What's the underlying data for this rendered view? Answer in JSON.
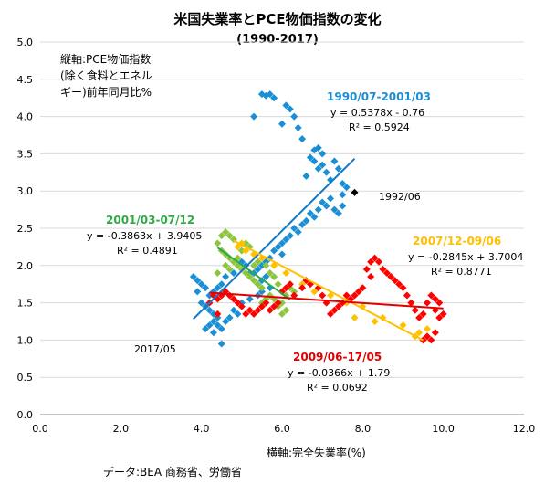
{
  "chart_data": {
    "type": "scatter",
    "title": "米国失業率とPCE物価指数の変化",
    "subtitle": "(1990-2017)",
    "xlabel": "横軸:完全失業率(%)",
    "ylabel_lines": [
      "縦軸:PCE物価指数",
      "(除く食料とエネル",
      "ギー)前年同月比%"
    ],
    "source": "データ:BEA 商務省、労働省",
    "xlim": [
      0,
      12
    ],
    "ylim": [
      0,
      5
    ],
    "x_ticks": [
      "0.0",
      "2.0",
      "4.0",
      "6.0",
      "8.0",
      "10.0",
      "12.0"
    ],
    "y_ticks": [
      "0.0",
      "0.5",
      "1.0",
      "1.5",
      "2.0",
      "2.5",
      "3.0",
      "3.5",
      "4.0",
      "4.5",
      "5.0"
    ],
    "grid": "horizontal",
    "series": [
      {
        "name": "1990/07-2001/03",
        "color": "#1a8fd6",
        "equation": "y = 0.5378x - 0.76",
        "r2": "R² = 0.5924",
        "trend": {
          "slope": 0.5378,
          "intercept": -0.76,
          "x_range": [
            3.8,
            7.8
          ]
        },
        "points": [
          [
            5.5,
            4.3
          ],
          [
            5.6,
            4.28
          ],
          [
            5.7,
            4.3
          ],
          [
            5.8,
            4.25
          ],
          [
            5.3,
            4.0
          ],
          [
            6.1,
            4.15
          ],
          [
            6.2,
            4.1
          ],
          [
            6.3,
            4.0
          ],
          [
            6.0,
            3.9
          ],
          [
            6.4,
            3.85
          ],
          [
            6.5,
            3.7
          ],
          [
            6.8,
            3.55
          ],
          [
            6.9,
            3.58
          ],
          [
            7.0,
            3.5
          ],
          [
            6.7,
            3.45
          ],
          [
            6.8,
            3.4
          ],
          [
            6.9,
            3.3
          ],
          [
            7.0,
            3.35
          ],
          [
            7.1,
            3.25
          ],
          [
            6.6,
            3.2
          ],
          [
            7.3,
            3.4
          ],
          [
            7.4,
            3.3
          ],
          [
            7.2,
            3.15
          ],
          [
            7.5,
            3.1
          ],
          [
            7.6,
            3.05
          ],
          [
            7.5,
            2.95
          ],
          [
            7.2,
            2.9
          ],
          [
            7.0,
            2.85
          ],
          [
            7.1,
            2.8
          ],
          [
            6.9,
            2.75
          ],
          [
            6.7,
            2.7
          ],
          [
            6.8,
            2.65
          ],
          [
            7.3,
            2.75
          ],
          [
            7.4,
            2.7
          ],
          [
            7.5,
            2.8
          ],
          [
            6.6,
            2.6
          ],
          [
            6.5,
            2.55
          ],
          [
            6.3,
            2.5
          ],
          [
            6.4,
            2.45
          ],
          [
            6.2,
            2.4
          ],
          [
            6.1,
            2.35
          ],
          [
            6.0,
            2.3
          ],
          [
            5.9,
            2.25
          ],
          [
            5.8,
            2.2
          ],
          [
            6.0,
            2.15
          ],
          [
            5.7,
            2.1
          ],
          [
            5.6,
            2.05
          ],
          [
            5.5,
            2.0
          ],
          [
            5.4,
            1.95
          ],
          [
            5.3,
            1.9
          ],
          [
            5.6,
            1.85
          ],
          [
            5.5,
            1.8
          ],
          [
            5.4,
            1.75
          ],
          [
            5.2,
            1.9
          ],
          [
            5.1,
            2.0
          ],
          [
            5.0,
            2.05
          ],
          [
            4.8,
            1.9
          ],
          [
            4.6,
            1.85
          ],
          [
            4.5,
            1.75
          ],
          [
            4.4,
            1.7
          ],
          [
            4.3,
            1.65
          ],
          [
            4.2,
            1.6
          ],
          [
            4.1,
            1.7
          ],
          [
            4.0,
            1.75
          ],
          [
            3.9,
            1.8
          ],
          [
            3.8,
            1.85
          ],
          [
            3.9,
            1.65
          ],
          [
            4.0,
            1.5
          ],
          [
            4.1,
            1.45
          ],
          [
            4.2,
            1.4
          ],
          [
            4.3,
            1.35
          ],
          [
            4.4,
            1.3
          ],
          [
            4.3,
            1.25
          ],
          [
            4.2,
            1.2
          ],
          [
            4.1,
            1.15
          ],
          [
            4.3,
            1.1
          ],
          [
            4.4,
            1.2
          ],
          [
            4.6,
            1.25
          ],
          [
            4.5,
            1.15
          ],
          [
            4.7,
            1.3
          ],
          [
            4.8,
            1.4
          ],
          [
            4.9,
            1.35
          ],
          [
            4.5,
            0.95
          ],
          [
            5.0,
            1.5
          ],
          [
            5.2,
            1.55
          ],
          [
            5.4,
            1.6
          ],
          [
            5.5,
            1.65
          ],
          [
            5.7,
            1.7
          ]
        ]
      },
      {
        "name": "2001/03-07/12",
        "color": "#8cc63f",
        "equation": "y = -0.3863x + 3.9405",
        "r2": "R² = 0.4891",
        "trend": {
          "slope": -0.3863,
          "intercept": 3.9405,
          "x_range": [
            4.4,
            6.2
          ]
        },
        "points": [
          [
            4.4,
            2.3
          ],
          [
            4.5,
            2.4
          ],
          [
            4.6,
            2.45
          ],
          [
            4.7,
            2.4
          ],
          [
            4.8,
            2.35
          ],
          [
            4.5,
            2.2
          ],
          [
            4.6,
            2.15
          ],
          [
            4.7,
            2.1
          ],
          [
            4.8,
            2.05
          ],
          [
            4.9,
            2.1
          ],
          [
            5.0,
            2.2
          ],
          [
            5.1,
            2.3
          ],
          [
            5.2,
            2.25
          ],
          [
            4.9,
            2.0
          ],
          [
            5.0,
            1.95
          ],
          [
            5.1,
            1.9
          ],
          [
            5.2,
            1.85
          ],
          [
            5.3,
            1.8
          ],
          [
            5.4,
            1.75
          ],
          [
            5.5,
            1.7
          ],
          [
            5.3,
            2.0
          ],
          [
            5.4,
            2.05
          ],
          [
            5.5,
            2.1
          ],
          [
            5.6,
            2.0
          ],
          [
            5.7,
            1.9
          ],
          [
            5.8,
            1.85
          ],
          [
            5.9,
            1.75
          ],
          [
            6.0,
            1.65
          ],
          [
            6.1,
            1.6
          ],
          [
            6.0,
            1.5
          ],
          [
            5.9,
            1.45
          ],
          [
            6.1,
            1.4
          ],
          [
            6.0,
            1.35
          ],
          [
            5.8,
            1.55
          ],
          [
            5.7,
            1.6
          ],
          [
            5.6,
            1.55
          ],
          [
            4.6,
            2.0
          ],
          [
            4.7,
            1.95
          ],
          [
            4.4,
            1.9
          ],
          [
            5.5,
            1.5
          ],
          [
            6.2,
            1.7
          ],
          [
            6.3,
            1.65
          ]
        ]
      },
      {
        "name": "2007/12-09/06",
        "color": "#ffc000",
        "equation": "y = -0.2845x + 3.7004",
        "r2": "R² = 0.8771",
        "trend": {
          "slope": -0.2845,
          "intercept": 3.7004,
          "x_range": [
            4.8,
            9.5
          ]
        },
        "points": [
          [
            4.9,
            2.25
          ],
          [
            5.0,
            2.3
          ],
          [
            5.1,
            2.2
          ],
          [
            5.3,
            2.15
          ],
          [
            5.5,
            2.1
          ],
          [
            5.8,
            2.0
          ],
          [
            6.1,
            1.9
          ],
          [
            6.5,
            1.75
          ],
          [
            6.8,
            1.65
          ],
          [
            7.2,
            1.6
          ],
          [
            7.6,
            1.5
          ],
          [
            8.0,
            1.45
          ],
          [
            8.5,
            1.3
          ],
          [
            9.0,
            1.2
          ],
          [
            9.4,
            1.1
          ],
          [
            9.5,
            1.0
          ],
          [
            9.6,
            1.15
          ],
          [
            9.3,
            1.05
          ],
          [
            8.3,
            1.25
          ],
          [
            7.8,
            1.3
          ]
        ]
      },
      {
        "name": "2009/06-17/05",
        "color": "#ff0000",
        "equation": "y = -0.0366x + 1.79",
        "r2": "R² = 0.0692",
        "trend": {
          "slope": -0.0366,
          "intercept": 1.79,
          "x_range": [
            4.2,
            10.0
          ]
        },
        "points": [
          [
            9.5,
            1.0
          ],
          [
            9.6,
            1.05
          ],
          [
            9.7,
            1.0
          ],
          [
            9.8,
            1.1
          ],
          [
            9.9,
            1.3
          ],
          [
            10.0,
            1.35
          ],
          [
            9.8,
            1.4
          ],
          [
            9.9,
            1.5
          ],
          [
            9.8,
            1.55
          ],
          [
            9.7,
            1.6
          ],
          [
            9.6,
            1.5
          ],
          [
            9.5,
            1.35
          ],
          [
            9.4,
            1.3
          ],
          [
            9.3,
            1.4
          ],
          [
            9.2,
            1.5
          ],
          [
            9.1,
            1.6
          ],
          [
            9.0,
            1.7
          ],
          [
            8.9,
            1.75
          ],
          [
            8.8,
            1.8
          ],
          [
            8.7,
            1.85
          ],
          [
            8.6,
            1.9
          ],
          [
            8.5,
            1.95
          ],
          [
            8.4,
            2.05
          ],
          [
            8.3,
            2.1
          ],
          [
            8.2,
            2.05
          ],
          [
            8.1,
            1.95
          ],
          [
            8.2,
            1.85
          ],
          [
            8.0,
            1.7
          ],
          [
            7.9,
            1.65
          ],
          [
            7.8,
            1.6
          ],
          [
            7.7,
            1.55
          ],
          [
            7.6,
            1.6
          ],
          [
            7.5,
            1.5
          ],
          [
            7.4,
            1.45
          ],
          [
            7.3,
            1.4
          ],
          [
            7.2,
            1.35
          ],
          [
            7.1,
            1.5
          ],
          [
            7.0,
            1.6
          ],
          [
            6.9,
            1.7
          ],
          [
            6.7,
            1.75
          ],
          [
            6.6,
            1.8
          ],
          [
            6.5,
            1.7
          ],
          [
            6.3,
            1.6
          ],
          [
            6.2,
            1.75
          ],
          [
            6.1,
            1.7
          ],
          [
            6.0,
            1.65
          ],
          [
            5.9,
            1.5
          ],
          [
            5.8,
            1.45
          ],
          [
            5.7,
            1.4
          ],
          [
            5.6,
            1.5
          ],
          [
            5.5,
            1.45
          ],
          [
            5.4,
            1.4
          ],
          [
            5.3,
            1.35
          ],
          [
            5.2,
            1.4
          ],
          [
            5.1,
            1.35
          ],
          [
            5.0,
            1.45
          ],
          [
            4.9,
            1.5
          ],
          [
            4.8,
            1.55
          ],
          [
            4.7,
            1.6
          ],
          [
            4.6,
            1.65
          ],
          [
            4.5,
            1.6
          ],
          [
            4.4,
            1.55
          ],
          [
            4.3,
            1.6
          ],
          [
            4.4,
            1.35
          ],
          [
            4.2,
            1.5
          ]
        ]
      }
    ],
    "point_annotations": [
      {
        "label": "1992/06",
        "x": 7.8,
        "y": 2.98
      },
      {
        "label": "2017/05",
        "x": 4.3,
        "y": 0.88
      }
    ]
  }
}
